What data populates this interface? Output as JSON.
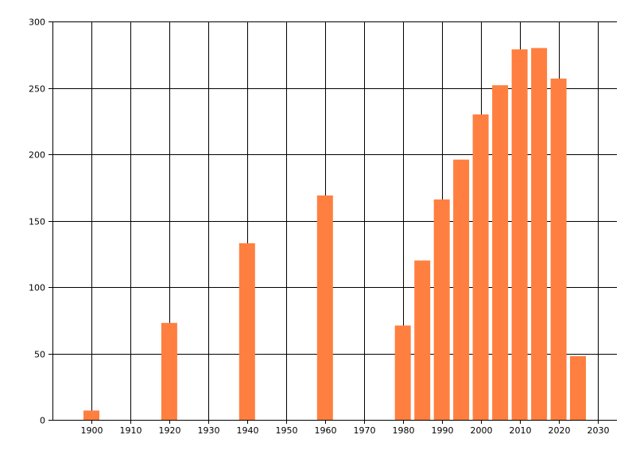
{
  "chart_data": {
    "type": "bar",
    "title": "",
    "xlabel": "",
    "ylabel": "",
    "x": [
      1900,
      1920,
      1940,
      1960,
      1980,
      1985,
      1990,
      1995,
      2000,
      2005,
      2010,
      2015,
      2020,
      2025
    ],
    "values": [
      7,
      73,
      133,
      169,
      71,
      120,
      166,
      196,
      230,
      252,
      279,
      280,
      257,
      48
    ],
    "xlim": [
      1890,
      2035
    ],
    "ylim": [
      0,
      300
    ],
    "x_ticks": [
      1900,
      1910,
      1920,
      1930,
      1940,
      1950,
      1960,
      1970,
      1980,
      1990,
      2000,
      2010,
      2020,
      2030
    ],
    "y_ticks": [
      0,
      50,
      100,
      150,
      200,
      250,
      300
    ],
    "bar_color": "#ff7f40",
    "grid": true,
    "legend": "none"
  }
}
